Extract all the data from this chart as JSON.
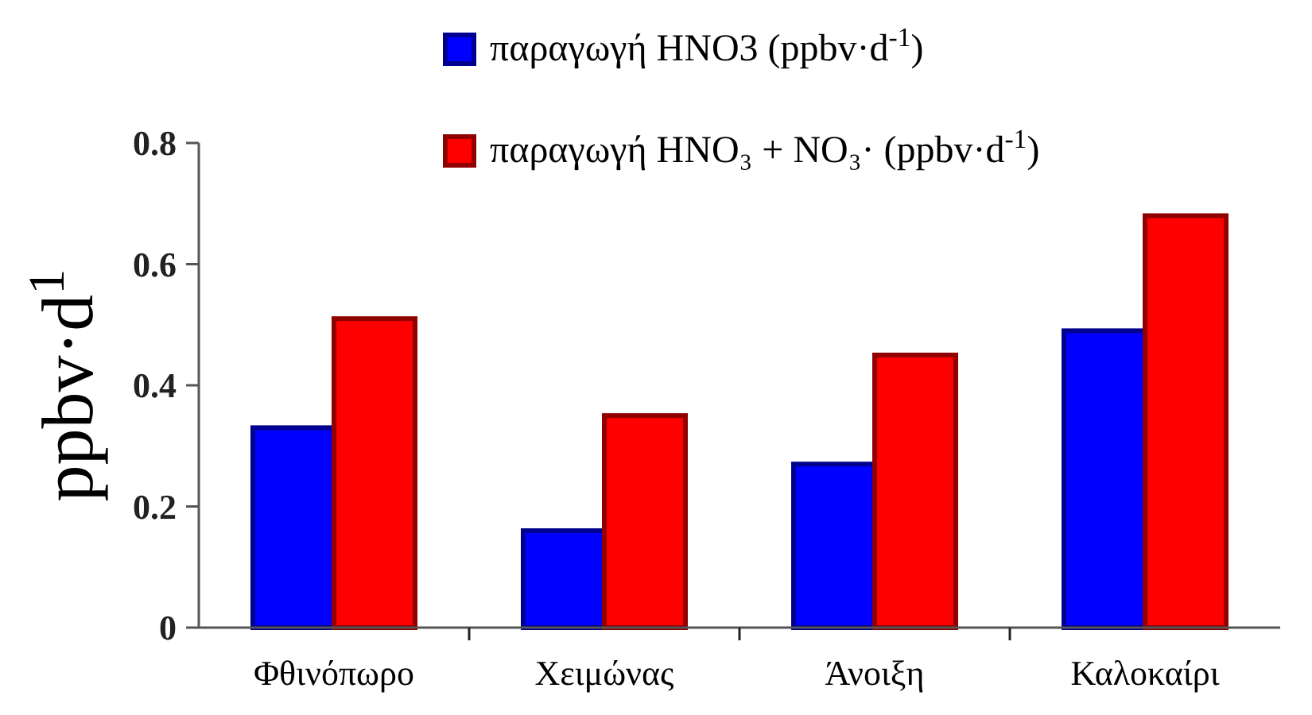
{
  "chart_data": {
    "type": "bar",
    "ylabel": "ppbv·d$^{1}$",
    "categories": [
      "Φθινόπωρο",
      "Χειμώνας",
      "Άνοιξη",
      "Καλοκαίρι"
    ],
    "series": [
      {
        "name": "παραγωγή HNO3   (ppbv·d$^{-1}$)",
        "color": "#0000ff",
        "values": [
          0.33,
          0.16,
          0.27,
          0.49
        ]
      },
      {
        "name": "παραγωγή HNO₃ + NO₃·  (ppbv·d$^{-1}$)",
        "color": "#ff0000",
        "values": [
          0.51,
          0.35,
          0.45,
          0.68
        ]
      }
    ],
    "ylim": [
      0,
      0.8
    ],
    "yticks": [
      0,
      0.2,
      0.4,
      0.6,
      0.8
    ],
    "grid": false,
    "legend": "top"
  }
}
